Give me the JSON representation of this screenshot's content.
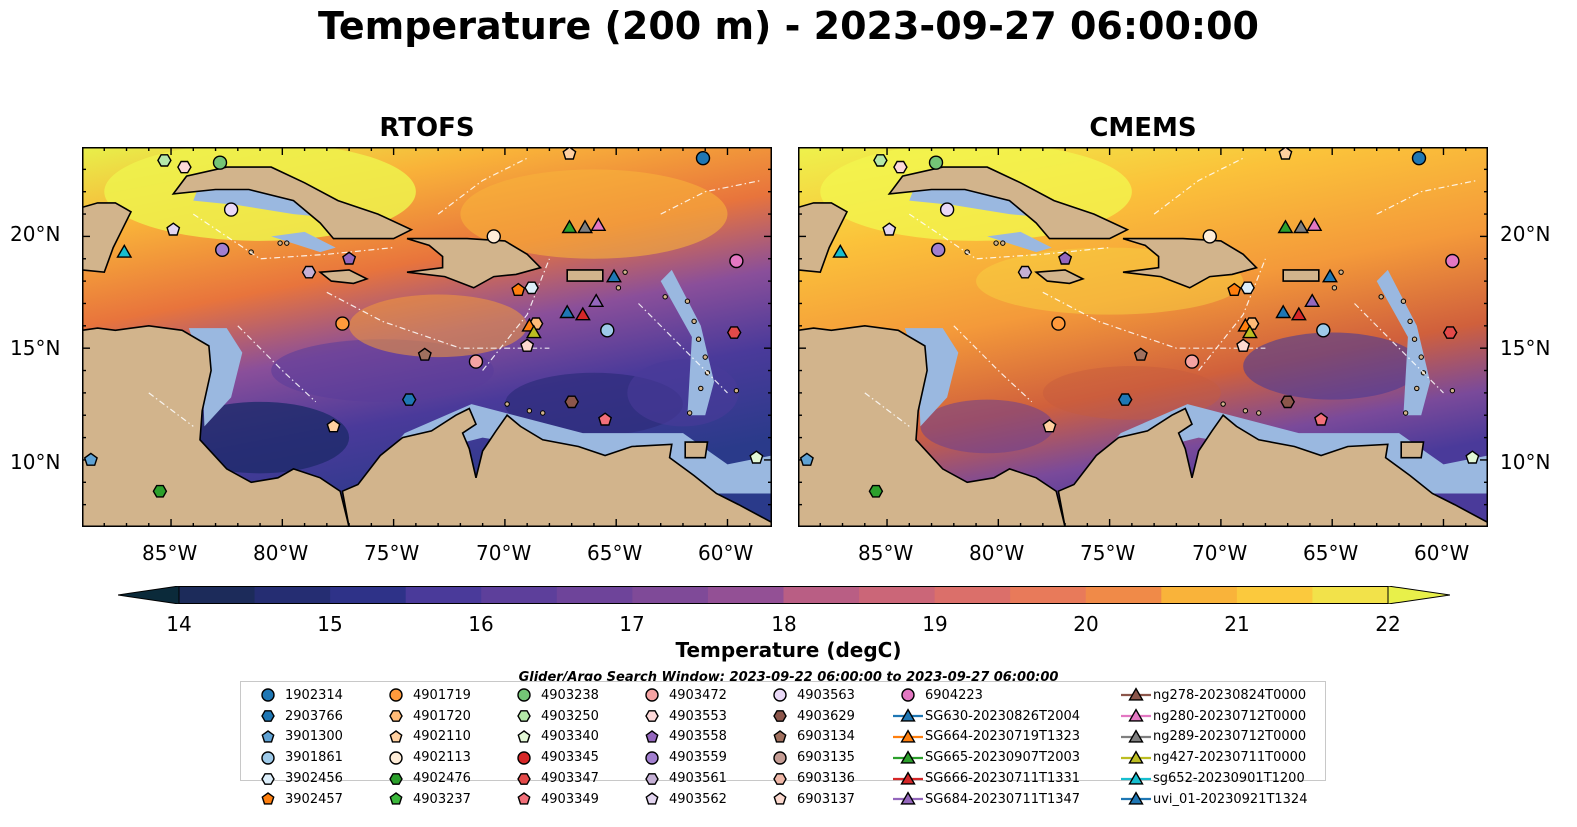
{
  "title": "Temperature (200 m) - 2023-09-27 06:00:00",
  "panels": [
    {
      "title": "RTOFS"
    },
    {
      "title": "CMEMS"
    }
  ],
  "map": {
    "lon_range": [
      -89,
      -58
    ],
    "lat_range": [
      7,
      24
    ],
    "lat_ticks": [
      {
        "value": 20,
        "label": "20°N"
      },
      {
        "value": 15,
        "label": "15°N"
      },
      {
        "value": 10,
        "label": "10°N"
      }
    ],
    "lon_ticks": [
      {
        "value": -85,
        "label": "85°W"
      },
      {
        "value": -80,
        "label": "80°W"
      },
      {
        "value": -75,
        "label": "75°W"
      },
      {
        "value": -70,
        "label": "70°W"
      },
      {
        "value": -65,
        "label": "65°W"
      },
      {
        "value": -60,
        "label": "60°W"
      }
    ],
    "colors": {
      "land": "#d2b48c",
      "shelf": "#9ab8e0",
      "deep": "#0b2a3a",
      "coast": "#000000"
    }
  },
  "colorbar": {
    "label": "Temperature (degC)",
    "min": 14,
    "max": 22,
    "ticks": [
      "14",
      "15",
      "16",
      "17",
      "18",
      "19",
      "20",
      "21",
      "22"
    ],
    "extend": "both"
  },
  "search_window": "Glider/Argo Search Window: 2023-09-22 06:00:00 to 2023-09-27 06:00:00",
  "legend": [
    [
      {
        "label": "1902314",
        "marker": "circle",
        "color": "#1f77b4"
      },
      {
        "label": "2903766",
        "marker": "hexagon",
        "color": "#1f77b4"
      },
      {
        "label": "3901300",
        "marker": "pentagon",
        "color": "#5fa2d4"
      },
      {
        "label": "3901861",
        "marker": "circle",
        "color": "#9ecae9"
      },
      {
        "label": "3902456",
        "marker": "hexagon",
        "color": "#dceefa"
      },
      {
        "label": "3902457",
        "marker": "pentagon",
        "color": "#ff7f0e"
      }
    ],
    [
      {
        "label": "4901719",
        "marker": "circle",
        "color": "#ff9a3c"
      },
      {
        "label": "4901720",
        "marker": "hexagon",
        "color": "#ffbb78"
      },
      {
        "label": "4902110",
        "marker": "pentagon",
        "color": "#ffd0a0"
      },
      {
        "label": "4902113",
        "marker": "circle",
        "color": "#ffedd8"
      },
      {
        "label": "4902476",
        "marker": "hexagon",
        "color": "#2ca02c"
      },
      {
        "label": "4903237",
        "marker": "pentagon",
        "color": "#3cb83c"
      }
    ],
    [
      {
        "label": "4903238",
        "marker": "circle",
        "color": "#74c476"
      },
      {
        "label": "4903250",
        "marker": "hexagon",
        "color": "#b5e8a8"
      },
      {
        "label": "4903340",
        "marker": "pentagon",
        "color": "#e3f8d6"
      },
      {
        "label": "4903345",
        "marker": "circle",
        "color": "#d62728"
      },
      {
        "label": "4903347",
        "marker": "hexagon",
        "color": "#e34a4a"
      },
      {
        "label": "4903349",
        "marker": "pentagon",
        "color": "#f2707a"
      }
    ],
    [
      {
        "label": "4903472",
        "marker": "circle",
        "color": "#f5a3a3"
      },
      {
        "label": "4903553",
        "marker": "hexagon",
        "color": "#fdd9d9"
      },
      {
        "label": "4903558",
        "marker": "pentagon",
        "color": "#9467bd"
      },
      {
        "label": "4903559",
        "marker": "circle",
        "color": "#a27fcf"
      },
      {
        "label": "4903561",
        "marker": "hexagon",
        "color": "#c5b0d5"
      },
      {
        "label": "4903562",
        "marker": "pentagon",
        "color": "#e3d5f0"
      }
    ],
    [
      {
        "label": "4903563",
        "marker": "circle",
        "color": "#ead9f7"
      },
      {
        "label": "4903629",
        "marker": "hexagon",
        "color": "#8c564b"
      },
      {
        "label": "6903134",
        "marker": "pentagon",
        "color": "#a0705e"
      },
      {
        "label": "6903135",
        "marker": "circle",
        "color": "#c49c94"
      },
      {
        "label": "6903136",
        "marker": "hexagon",
        "color": "#f0b8a8"
      },
      {
        "label": "6903137",
        "marker": "pentagon",
        "color": "#fcd9cf"
      }
    ],
    [
      {
        "label": "6904223",
        "marker": "circle",
        "color": "#e377c2"
      },
      {
        "label": "SG630-20230826T2004",
        "marker": "triangle-line",
        "color": "#1f77b4"
      },
      {
        "label": "SG664-20230719T1323",
        "marker": "triangle-line",
        "color": "#ff7f0e"
      },
      {
        "label": "SG665-20230907T2003",
        "marker": "triangle-line",
        "color": "#2ca02c"
      },
      {
        "label": "SG666-20230711T1331",
        "marker": "triangle-line",
        "color": "#d62728"
      },
      {
        "label": "SG684-20230711T1347",
        "marker": "triangle-line",
        "color": "#9467bd"
      }
    ],
    [
      {
        "label": "ng278-20230824T0000",
        "marker": "triangle-line",
        "color": "#8c564b"
      },
      {
        "label": "ng280-20230712T0000",
        "marker": "triangle-line",
        "color": "#e377c2"
      },
      {
        "label": "ng289-20230712T0000",
        "marker": "triangle-line",
        "color": "#7f7f7f"
      },
      {
        "label": "ng427-20230711T0000",
        "marker": "triangle-line",
        "color": "#bcbd22"
      },
      {
        "label": "sg652-20230901T1200",
        "marker": "triangle-line",
        "color": "#17becf"
      },
      {
        "label": "uvi_01-20230921T1324",
        "marker": "triangle-line",
        "color": "#1f77b4"
      }
    ]
  ],
  "observations": [
    {
      "lon": -61.1,
      "lat": 23.5,
      "marker": "circle",
      "color": "#1f77b4"
    },
    {
      "lon": -74.3,
      "lat": 12.7,
      "marker": "hexagon",
      "color": "#1f77b4"
    },
    {
      "lon": -88.6,
      "lat": 10.0,
      "marker": "pentagon",
      "color": "#5fa2d4"
    },
    {
      "lon": -65.4,
      "lat": 15.8,
      "marker": "circle",
      "color": "#9ecae9"
    },
    {
      "lon": -68.8,
      "lat": 17.7,
      "marker": "hexagon",
      "color": "#dceefa"
    },
    {
      "lon": -69.4,
      "lat": 17.6,
      "marker": "pentagon",
      "color": "#ff7f0e"
    },
    {
      "lon": -77.3,
      "lat": 16.1,
      "marker": "circle",
      "color": "#ff9a3c"
    },
    {
      "lon": -68.6,
      "lat": 16.1,
      "marker": "hexagon",
      "color": "#ffbb78"
    },
    {
      "lon": -77.7,
      "lat": 11.5,
      "marker": "pentagon",
      "color": "#ffd0a0"
    },
    {
      "lon": -70.5,
      "lat": 20.0,
      "marker": "circle",
      "color": "#ffedd8"
    },
    {
      "lon": -85.5,
      "lat": 8.6,
      "marker": "hexagon",
      "color": "#2ca02c"
    },
    {
      "lon": -67.1,
      "lat": 20.4,
      "marker": "triangle",
      "color": "#2ca02c"
    },
    {
      "lon": -82.8,
      "lat": 23.3,
      "marker": "circle",
      "color": "#74c476"
    },
    {
      "lon": -85.3,
      "lat": 23.4,
      "marker": "hexagon",
      "color": "#b5e8a8"
    },
    {
      "lon": -58.7,
      "lat": 10.1,
      "marker": "pentagon",
      "color": "#e3f8d6"
    },
    {
      "lon": -66.5,
      "lat": 16.5,
      "marker": "triangle",
      "color": "#d62728"
    },
    {
      "lon": -59.7,
      "lat": 15.7,
      "marker": "hexagon",
      "color": "#e34a4a"
    },
    {
      "lon": -65.5,
      "lat": 11.8,
      "marker": "pentagon",
      "color": "#f2707a"
    },
    {
      "lon": -71.3,
      "lat": 14.4,
      "marker": "circle",
      "color": "#f5a3a3"
    },
    {
      "lon": -84.4,
      "lat": 23.1,
      "marker": "hexagon",
      "color": "#fdd9d9"
    },
    {
      "lon": -77.0,
      "lat": 19.0,
      "marker": "pentagon",
      "color": "#9467bd"
    },
    {
      "lon": -82.7,
      "lat": 19.4,
      "marker": "circle",
      "color": "#a27fcf"
    },
    {
      "lon": -78.8,
      "lat": 18.4,
      "marker": "hexagon",
      "color": "#c5b0d5"
    },
    {
      "lon": -84.9,
      "lat": 20.3,
      "marker": "pentagon",
      "color": "#e3d5f0"
    },
    {
      "lon": -82.3,
      "lat": 21.2,
      "marker": "circle",
      "color": "#ead9f7"
    },
    {
      "lon": -67.0,
      "lat": 12.6,
      "marker": "hexagon",
      "color": "#8c564b"
    },
    {
      "lon": -73.6,
      "lat": 14.7,
      "marker": "pentagon",
      "color": "#a0705e"
    },
    {
      "lon": -59.6,
      "lat": 18.9,
      "marker": "circle",
      "color": "#e377c2"
    },
    {
      "lon": -69.0,
      "lat": 15.1,
      "marker": "pentagon",
      "color": "#fcd9cf"
    },
    {
      "lon": -67.1,
      "lat": 23.7,
      "marker": "pentagon",
      "color": "#ffd0a0"
    },
    {
      "lon": -67.2,
      "lat": 16.6,
      "marker": "triangle",
      "color": "#1f77b4"
    },
    {
      "lon": -65.1,
      "lat": 18.2,
      "marker": "triangle",
      "color": "#1f77b4"
    },
    {
      "lon": -68.9,
      "lat": 16.0,
      "marker": "triangle",
      "color": "#ff7f0e"
    },
    {
      "lon": -65.9,
      "lat": 17.1,
      "marker": "triangle",
      "color": "#9467bd"
    },
    {
      "lon": -66.4,
      "lat": 20.4,
      "marker": "triangle",
      "color": "#7f7f7f"
    },
    {
      "lon": -65.8,
      "lat": 20.5,
      "marker": "triangle",
      "color": "#e377c2"
    },
    {
      "lon": -68.7,
      "lat": 15.7,
      "marker": "triangle",
      "color": "#bcbd22"
    },
    {
      "lon": -87.1,
      "lat": 19.3,
      "marker": "triangle",
      "color": "#17becf"
    }
  ]
}
